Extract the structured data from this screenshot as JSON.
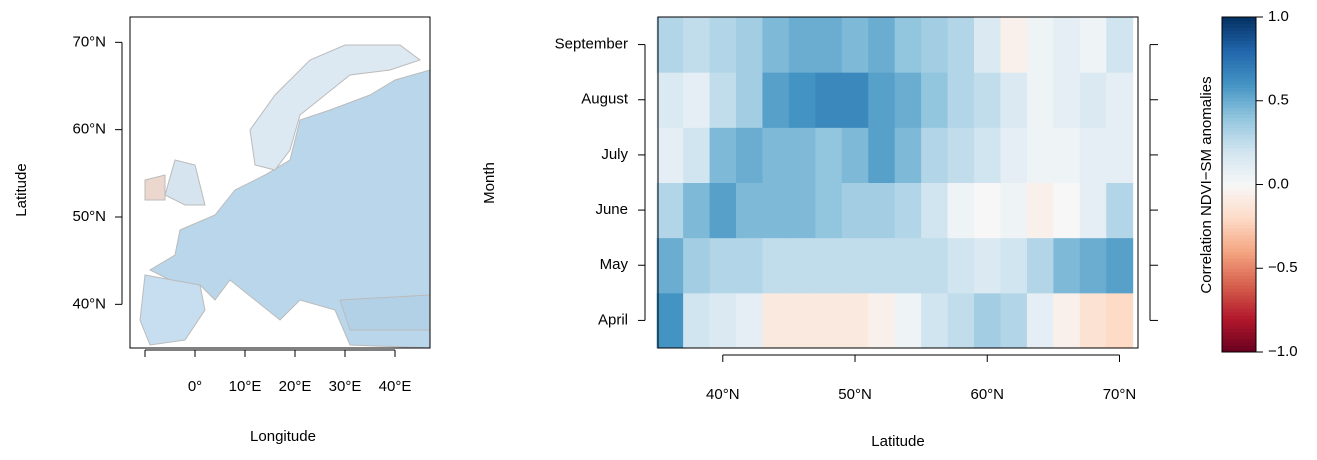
{
  "chart_data": [
    {
      "type": "map",
      "xlabel": "Longitude",
      "ylabel": "Latitude",
      "xlim": [
        -13,
        47
      ],
      "ylim": [
        35,
        72.9
      ],
      "xticks": [
        {
          "value": -10,
          "label": null
        },
        {
          "value": 0,
          "label": "0°"
        },
        {
          "value": 10,
          "label": "10°E"
        },
        {
          "value": 20,
          "label": "20°E"
        },
        {
          "value": 30,
          "label": "30°E"
        },
        {
          "value": 40,
          "label": "40°E"
        }
      ],
      "yticks": [
        {
          "value": 40,
          "label": "40°N"
        },
        {
          "value": 50,
          "label": "50°N"
        },
        {
          "value": 60,
          "label": "60°N"
        },
        {
          "value": 70,
          "label": "70°N"
        }
      ]
    },
    {
      "type": "heatmap",
      "xlabel": "Latitude",
      "ylabel": "Month",
      "categories": [
        "April",
        "May",
        "June",
        "July",
        "August",
        "September"
      ],
      "bins": [
        35,
        37,
        39,
        41,
        43,
        45,
        47,
        49,
        51,
        53,
        55,
        57,
        59,
        61,
        63,
        65,
        67,
        69,
        71
      ],
      "values": [
        [
          0.6,
          0.2,
          0.15,
          0.1,
          -0.1,
          -0.1,
          -0.1,
          -0.1,
          -0.05,
          0.05,
          0.2,
          0.25,
          0.35,
          0.3,
          0.1,
          -0.05,
          -0.15,
          -0.2
        ],
        [
          0.5,
          0.35,
          0.3,
          0.3,
          0.25,
          0.25,
          0.25,
          0.25,
          0.25,
          0.25,
          0.25,
          0.2,
          0.15,
          0.2,
          0.3,
          0.45,
          0.5,
          0.55
        ],
        [
          0.3,
          0.45,
          0.55,
          0.45,
          0.45,
          0.45,
          0.4,
          0.35,
          0.35,
          0.3,
          0.2,
          0.05,
          0.0,
          0.05,
          -0.05,
          0.0,
          0.1,
          0.3
        ],
        [
          0.1,
          0.2,
          0.45,
          0.5,
          0.45,
          0.45,
          0.4,
          0.45,
          0.55,
          0.45,
          0.3,
          0.25,
          0.2,
          0.1,
          0.05,
          0.05,
          0.1,
          0.1
        ],
        [
          0.15,
          0.1,
          0.25,
          0.35,
          0.55,
          0.6,
          0.65,
          0.65,
          0.55,
          0.5,
          0.4,
          0.3,
          0.25,
          0.15,
          0.05,
          0.1,
          0.15,
          0.1
        ],
        [
          0.3,
          0.25,
          0.3,
          0.35,
          0.45,
          0.5,
          0.5,
          0.45,
          0.5,
          0.4,
          0.35,
          0.3,
          0.15,
          -0.05,
          0.05,
          0.1,
          0.05,
          0.2
        ]
      ],
      "xlim": [
        35.1,
        71.4
      ],
      "xticks": [
        {
          "value": 40,
          "label": "40°N"
        },
        {
          "value": 50,
          "label": "50°N"
        },
        {
          "value": 60,
          "label": "60°N"
        },
        {
          "value": 70,
          "label": "70°N"
        }
      ]
    },
    {
      "type": "colorbar",
      "label": "Correlation NDVI−SM anomalies",
      "ylim": [
        -1,
        1
      ],
      "yticks": [
        {
          "value": 1,
          "label": "1.0"
        },
        {
          "value": 0.5,
          "label": "0.5"
        },
        {
          "value": 0,
          "label": "0.0"
        },
        {
          "value": -0.5,
          "label": "−0.5"
        },
        {
          "value": -1,
          "label": "−1.0"
        }
      ],
      "colors": [
        "#67001f",
        "#b2182b",
        "#d6604d",
        "#f4a582",
        "#fddbc7",
        "#f7f7f7",
        "#d1e5f0",
        "#92c5de",
        "#4393c3",
        "#2166ac",
        "#053061"
      ]
    }
  ]
}
